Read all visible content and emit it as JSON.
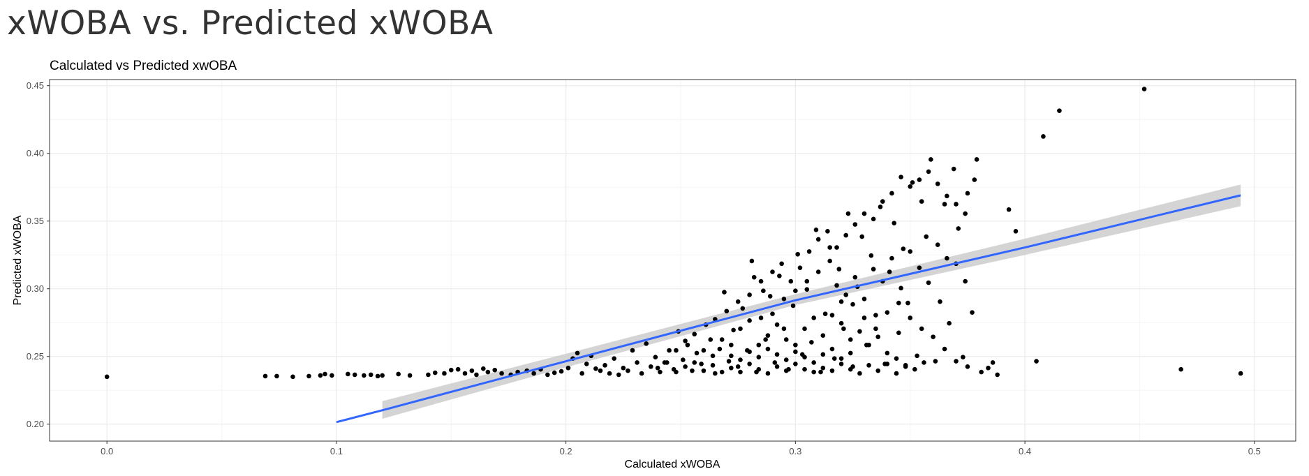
{
  "page": {
    "title": "xWOBA vs. Predicted xWOBA"
  },
  "colors": {
    "point": "#000000",
    "line": "#3366FF",
    "ribbon": "#CCCCCC",
    "grid_major": "#EBEBEB",
    "grid_minor": "#F5F5F5",
    "panel_border": "#333333"
  },
  "chart_data": {
    "type": "scatter",
    "title": "Calculated vs Predicted xwOBA",
    "xlabel": "Calculated xWOBA",
    "ylabel": "Predicted xWOBA",
    "xlim": [
      -0.025,
      0.518
    ],
    "ylim": [
      0.1875,
      0.4545
    ],
    "x_ticks": [
      0.0,
      0.1,
      0.2,
      0.3,
      0.4,
      0.5
    ],
    "x_tick_labels": [
      "0.0",
      "0.1",
      "0.2",
      "0.3",
      "0.4",
      "0.5"
    ],
    "y_ticks": [
      0.2,
      0.25,
      0.3,
      0.35,
      0.4,
      0.45
    ],
    "y_tick_labels": [
      "0.20",
      "0.25",
      "0.30",
      "0.35",
      "0.40",
      "0.45"
    ],
    "grid": true,
    "legend": "none",
    "smooth": {
      "method": "lm",
      "x": [
        0.1,
        0.12,
        0.2,
        0.3,
        0.4,
        0.494
      ],
      "y": [
        0.2015,
        0.2103,
        0.2465,
        0.2915,
        0.3305,
        0.369
      ],
      "upper": [
        0.204,
        0.217,
        0.252,
        0.296,
        0.337,
        0.377
      ],
      "lower": [
        0.199,
        0.204,
        0.242,
        0.288,
        0.325,
        0.361
      ]
    },
    "points": [
      [
        0.0,
        0.235
      ],
      [
        0.069,
        0.2355
      ],
      [
        0.074,
        0.2355
      ],
      [
        0.081,
        0.235
      ],
      [
        0.088,
        0.2355
      ],
      [
        0.093,
        0.236
      ],
      [
        0.095,
        0.237
      ],
      [
        0.098,
        0.236
      ],
      [
        0.105,
        0.237
      ],
      [
        0.108,
        0.2365
      ],
      [
        0.112,
        0.236
      ],
      [
        0.115,
        0.2365
      ],
      [
        0.118,
        0.2355
      ],
      [
        0.12,
        0.236
      ],
      [
        0.127,
        0.237
      ],
      [
        0.132,
        0.236
      ],
      [
        0.14,
        0.2365
      ],
      [
        0.143,
        0.238
      ],
      [
        0.147,
        0.2375
      ],
      [
        0.15,
        0.24
      ],
      [
        0.153,
        0.2405
      ],
      [
        0.156,
        0.2375
      ],
      [
        0.159,
        0.2395
      ],
      [
        0.161,
        0.2365
      ],
      [
        0.164,
        0.241
      ],
      [
        0.166,
        0.2385
      ],
      [
        0.169,
        0.24
      ],
      [
        0.172,
        0.2375
      ],
      [
        0.176,
        0.2365
      ],
      [
        0.179,
        0.2385
      ],
      [
        0.183,
        0.2395
      ],
      [
        0.186,
        0.2375
      ],
      [
        0.189,
        0.2405
      ],
      [
        0.192,
        0.2365
      ],
      [
        0.195,
        0.238
      ],
      [
        0.198,
        0.239
      ],
      [
        0.201,
        0.2415
      ],
      [
        0.203,
        0.2485
      ],
      [
        0.205,
        0.2525
      ],
      [
        0.207,
        0.2375
      ],
      [
        0.209,
        0.2445
      ],
      [
        0.211,
        0.2505
      ],
      [
        0.213,
        0.241
      ],
      [
        0.215,
        0.2395
      ],
      [
        0.217,
        0.2435
      ],
      [
        0.219,
        0.2375
      ],
      [
        0.221,
        0.2485
      ],
      [
        0.223,
        0.2365
      ],
      [
        0.225,
        0.2415
      ],
      [
        0.227,
        0.2395
      ],
      [
        0.229,
        0.2545
      ],
      [
        0.231,
        0.2455
      ],
      [
        0.233,
        0.2375
      ],
      [
        0.235,
        0.2595
      ],
      [
        0.237,
        0.2425
      ],
      [
        0.239,
        0.2495
      ],
      [
        0.241,
        0.2385
      ],
      [
        0.243,
        0.2455
      ],
      [
        0.245,
        0.2545
      ],
      [
        0.247,
        0.2405
      ],
      [
        0.249,
        0.2685
      ],
      [
        0.251,
        0.2475
      ],
      [
        0.253,
        0.2585
      ],
      [
        0.255,
        0.2395
      ],
      [
        0.257,
        0.2525
      ],
      [
        0.259,
        0.2445
      ],
      [
        0.261,
        0.2735
      ],
      [
        0.263,
        0.2625
      ],
      [
        0.265,
        0.2375
      ],
      [
        0.267,
        0.2555
      ],
      [
        0.269,
        0.2975
      ],
      [
        0.271,
        0.2465
      ],
      [
        0.273,
        0.2695
      ],
      [
        0.275,
        0.2425
      ],
      [
        0.277,
        0.2855
      ],
      [
        0.279,
        0.2545
      ],
      [
        0.281,
        0.3205
      ],
      [
        0.283,
        0.2385
      ],
      [
        0.285,
        0.2785
      ],
      [
        0.287,
        0.2625
      ],
      [
        0.289,
        0.2945
      ],
      [
        0.291,
        0.2455
      ],
      [
        0.293,
        0.3095
      ],
      [
        0.295,
        0.2705
      ],
      [
        0.297,
        0.2405
      ],
      [
        0.299,
        0.2875
      ],
      [
        0.301,
        0.3255
      ],
      [
        0.303,
        0.2515
      ],
      [
        0.305,
        0.2995
      ],
      [
        0.307,
        0.2605
      ],
      [
        0.309,
        0.3435
      ],
      [
        0.311,
        0.2385
      ],
      [
        0.313,
        0.2815
      ],
      [
        0.315,
        0.3305
      ],
      [
        0.317,
        0.2485
      ],
      [
        0.319,
        0.3145
      ],
      [
        0.321,
        0.2705
      ],
      [
        0.323,
        0.3555
      ],
      [
        0.325,
        0.2425
      ],
      [
        0.327,
        0.3015
      ],
      [
        0.329,
        0.3385
      ],
      [
        0.331,
        0.2585
      ],
      [
        0.333,
        0.3245
      ],
      [
        0.335,
        0.2805
      ],
      [
        0.337,
        0.3605
      ],
      [
        0.339,
        0.2445
      ],
      [
        0.341,
        0.3125
      ],
      [
        0.343,
        0.3485
      ],
      [
        0.345,
        0.2675
      ],
      [
        0.347,
        0.3295
      ],
      [
        0.349,
        0.2895
      ],
      [
        0.351,
        0.3785
      ],
      [
        0.353,
        0.2505
      ],
      [
        0.355,
        0.3645
      ],
      [
        0.357,
        0.3385
      ],
      [
        0.359,
        0.3955
      ],
      [
        0.361,
        0.2465
      ],
      [
        0.363,
        0.2905
      ],
      [
        0.365,
        0.3625
      ],
      [
        0.367,
        0.2745
      ],
      [
        0.369,
        0.3885
      ],
      [
        0.371,
        0.3445
      ],
      [
        0.373,
        0.2495
      ],
      [
        0.375,
        0.3705
      ],
      [
        0.377,
        0.2825
      ],
      [
        0.379,
        0.3955
      ],
      [
        0.381,
        0.2385
      ],
      [
        0.384,
        0.2415
      ],
      [
        0.386,
        0.2455
      ],
      [
        0.388,
        0.2365
      ],
      [
        0.393,
        0.3585
      ],
      [
        0.396,
        0.3425
      ],
      [
        0.405,
        0.2465
      ],
      [
        0.408,
        0.4125
      ],
      [
        0.415,
        0.4315
      ],
      [
        0.452,
        0.4475
      ],
      [
        0.468,
        0.2405
      ],
      [
        0.494,
        0.2375
      ],
      [
        0.282,
        0.3085
      ],
      [
        0.286,
        0.2985
      ],
      [
        0.29,
        0.3125
      ],
      [
        0.294,
        0.3185
      ],
      [
        0.298,
        0.3055
      ],
      [
        0.302,
        0.3155
      ],
      [
        0.306,
        0.3275
      ],
      [
        0.31,
        0.3365
      ],
      [
        0.314,
        0.3425
      ],
      [
        0.318,
        0.3305
      ],
      [
        0.322,
        0.3395
      ],
      [
        0.326,
        0.3475
      ],
      [
        0.33,
        0.3555
      ],
      [
        0.334,
        0.3515
      ],
      [
        0.338,
        0.3645
      ],
      [
        0.342,
        0.3705
      ],
      [
        0.346,
        0.3825
      ],
      [
        0.35,
        0.3755
      ],
      [
        0.354,
        0.3805
      ],
      [
        0.358,
        0.3865
      ],
      [
        0.362,
        0.3775
      ],
      [
        0.366,
        0.3685
      ],
      [
        0.37,
        0.3625
      ],
      [
        0.374,
        0.3555
      ],
      [
        0.378,
        0.3805
      ],
      [
        0.318,
        0.3025
      ],
      [
        0.322,
        0.2955
      ],
      [
        0.326,
        0.3085
      ],
      [
        0.33,
        0.2925
      ],
      [
        0.334,
        0.3145
      ],
      [
        0.338,
        0.3055
      ],
      [
        0.342,
        0.3225
      ],
      [
        0.346,
        0.3005
      ],
      [
        0.35,
        0.3275
      ],
      [
        0.354,
        0.3155
      ],
      [
        0.358,
        0.3045
      ],
      [
        0.362,
        0.3325
      ],
      [
        0.366,
        0.3225
      ],
      [
        0.37,
        0.3185
      ],
      [
        0.374,
        0.3055
      ],
      [
        0.265,
        0.2775
      ],
      [
        0.27,
        0.2835
      ],
      [
        0.275,
        0.2905
      ],
      [
        0.28,
        0.2955
      ],
      [
        0.285,
        0.3055
      ],
      [
        0.29,
        0.2815
      ],
      [
        0.295,
        0.2925
      ],
      [
        0.3,
        0.2985
      ],
      [
        0.305,
        0.3055
      ],
      [
        0.31,
        0.3125
      ],
      [
        0.315,
        0.3205
      ],
      [
        0.32,
        0.2905
      ],
      [
        0.325,
        0.2885
      ],
      [
        0.33,
        0.2785
      ],
      [
        0.335,
        0.2705
      ],
      [
        0.34,
        0.2825
      ],
      [
        0.345,
        0.2895
      ],
      [
        0.35,
        0.2785
      ],
      [
        0.355,
        0.2705
      ],
      [
        0.36,
        0.2645
      ],
      [
        0.365,
        0.2555
      ],
      [
        0.37,
        0.2465
      ],
      [
        0.375,
        0.2425
      ],
      [
        0.248,
        0.2545
      ],
      [
        0.252,
        0.2615
      ],
      [
        0.256,
        0.2665
      ],
      [
        0.26,
        0.2545
      ],
      [
        0.264,
        0.2505
      ],
      [
        0.268,
        0.2625
      ],
      [
        0.272,
        0.2585
      ],
      [
        0.276,
        0.2705
      ],
      [
        0.28,
        0.2765
      ],
      [
        0.284,
        0.2585
      ],
      [
        0.288,
        0.2655
      ],
      [
        0.292,
        0.2735
      ],
      [
        0.296,
        0.2625
      ],
      [
        0.3,
        0.2585
      ],
      [
        0.304,
        0.2705
      ],
      [
        0.308,
        0.2785
      ],
      [
        0.312,
        0.2655
      ],
      [
        0.316,
        0.2805
      ],
      [
        0.32,
        0.2745
      ],
      [
        0.324,
        0.2625
      ],
      [
        0.328,
        0.2685
      ],
      [
        0.332,
        0.2585
      ],
      [
        0.336,
        0.2645
      ],
      [
        0.34,
        0.2525
      ],
      [
        0.344,
        0.2485
      ],
      [
        0.348,
        0.2435
      ],
      [
        0.352,
        0.2405
      ],
      [
        0.356,
        0.2455
      ],
      [
        0.24,
        0.2415
      ],
      [
        0.244,
        0.2455
      ],
      [
        0.248,
        0.2385
      ],
      [
        0.252,
        0.2425
      ],
      [
        0.256,
        0.2455
      ],
      [
        0.26,
        0.2395
      ],
      [
        0.264,
        0.2435
      ],
      [
        0.268,
        0.2385
      ],
      [
        0.272,
        0.2415
      ],
      [
        0.276,
        0.2385
      ],
      [
        0.28,
        0.2445
      ],
      [
        0.284,
        0.2405
      ],
      [
        0.288,
        0.2375
      ],
      [
        0.292,
        0.2425
      ],
      [
        0.296,
        0.2395
      ],
      [
        0.3,
        0.2445
      ],
      [
        0.304,
        0.2405
      ],
      [
        0.308,
        0.2385
      ],
      [
        0.312,
        0.2415
      ],
      [
        0.316,
        0.2395
      ],
      [
        0.32,
        0.2445
      ],
      [
        0.324,
        0.2405
      ],
      [
        0.328,
        0.2375
      ],
      [
        0.332,
        0.2435
      ],
      [
        0.336,
        0.2395
      ],
      [
        0.34,
        0.2445
      ],
      [
        0.344,
        0.2375
      ],
      [
        0.348,
        0.2425
      ],
      [
        0.272,
        0.2505
      ],
      [
        0.276,
        0.2475
      ],
      [
        0.28,
        0.2535
      ],
      [
        0.284,
        0.2495
      ],
      [
        0.288,
        0.2555
      ],
      [
        0.292,
        0.2515
      ],
      [
        0.296,
        0.2475
      ],
      [
        0.3,
        0.2535
      ],
      [
        0.304,
        0.2495
      ],
      [
        0.308,
        0.2455
      ],
      [
        0.312,
        0.2515
      ],
      [
        0.316,
        0.2555
      ],
      [
        0.32,
        0.2485
      ],
      [
        0.324,
        0.2525
      ]
    ]
  }
}
